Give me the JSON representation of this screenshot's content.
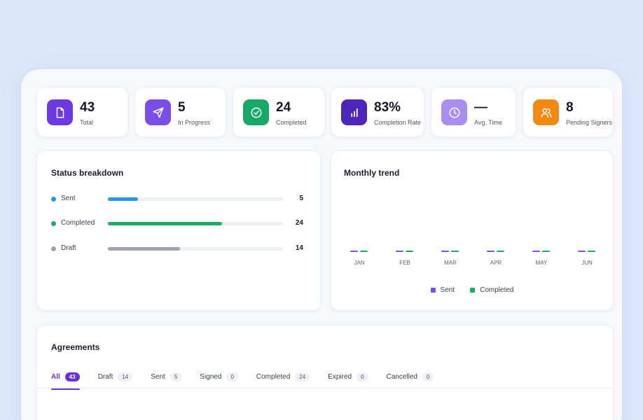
{
  "stats": [
    {
      "value": "43",
      "label": "Total",
      "icon": "document-icon",
      "color": "#6c3ae0"
    },
    {
      "value": "5",
      "label": "In Progress",
      "icon": "send-icon",
      "color": "#7b4de8"
    },
    {
      "value": "24",
      "label": "Completed",
      "icon": "check-circle-icon",
      "color": "#17a866"
    },
    {
      "value": "83%",
      "label": "Completion Rate",
      "icon": "bar-chart-icon",
      "color": "#4b26b8"
    },
    {
      "value": "—",
      "label": "Avg. Time",
      "icon": "clock-icon",
      "color": "#a88ef0"
    },
    {
      "value": "8",
      "label": "Pending Signers",
      "icon": "users-icon",
      "color": "#f08a14"
    }
  ],
  "status": {
    "title": "Status breakdown",
    "rows": [
      {
        "name": "Sent",
        "count": "5",
        "fraction": 0.17,
        "color": "#2196f3"
      },
      {
        "name": "Completed",
        "count": "24",
        "fraction": 0.65,
        "color": "#1aad64"
      },
      {
        "name": "Draft",
        "count": "14",
        "fraction": 0.41,
        "color": "#9fa3ad"
      }
    ]
  },
  "trend": {
    "title": "Monthly trend",
    "months": [
      "JAN",
      "FEB",
      "MAR",
      "APR",
      "MAY",
      "JUN"
    ],
    "legend": {
      "sent": "Sent",
      "completed": "Completed"
    },
    "colors": {
      "sent": "#7c4ee6",
      "completed": "#1aad64"
    }
  },
  "agreements": {
    "title": "Agreements",
    "tabs": [
      {
        "label": "All",
        "count": "43",
        "active": true
      },
      {
        "label": "Draft",
        "count": "14"
      },
      {
        "label": "Sent",
        "count": "5"
      },
      {
        "label": "Signed",
        "count": "0"
      },
      {
        "label": "Completed",
        "count": "24"
      },
      {
        "label": "Expired",
        "count": "0"
      },
      {
        "label": "Cancelled",
        "count": "0"
      }
    ]
  }
}
